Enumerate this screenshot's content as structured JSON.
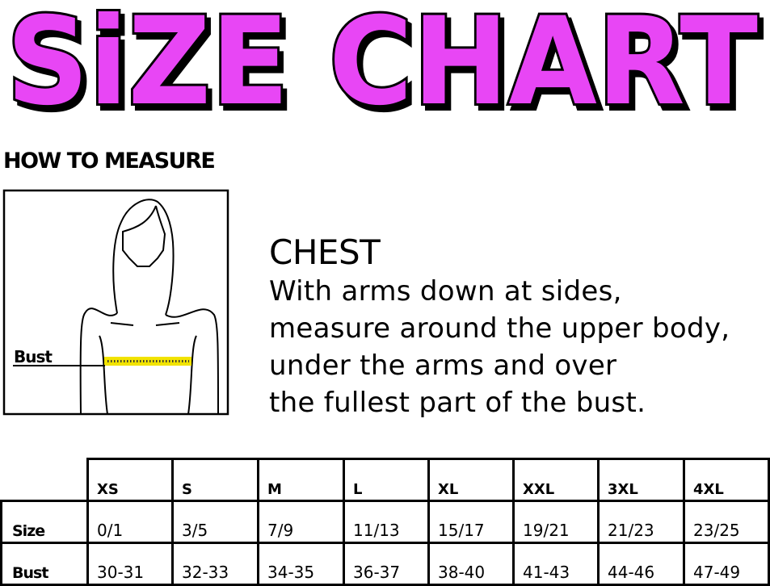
{
  "title": "SiZE CHART",
  "title_color": "#E846F5",
  "how_to_measure": "HOW TO MEASURE",
  "figure": {
    "label": "Bust",
    "tape_color": "#F2E300"
  },
  "chest": {
    "heading": "CHEST",
    "lines": [
      "With arms down at sides,",
      "measure around the upper body,",
      "under the arms and over",
      "the fullest part of the bust."
    ]
  },
  "table": {
    "columns": [
      "XS",
      "S",
      "M",
      "L",
      "XL",
      "XXL",
      "3XL",
      "4XL"
    ],
    "rows": [
      {
        "label": "Size",
        "values": [
          "0/1",
          "3/5",
          "7/9",
          "11/13",
          "15/17",
          "19/21",
          "21/23",
          "23/25"
        ]
      },
      {
        "label": "Bust",
        "values": [
          "30-31",
          "32-33",
          "34-35",
          "36-37",
          "38-40",
          "41-43",
          "44-46",
          "47-49"
        ]
      }
    ]
  }
}
